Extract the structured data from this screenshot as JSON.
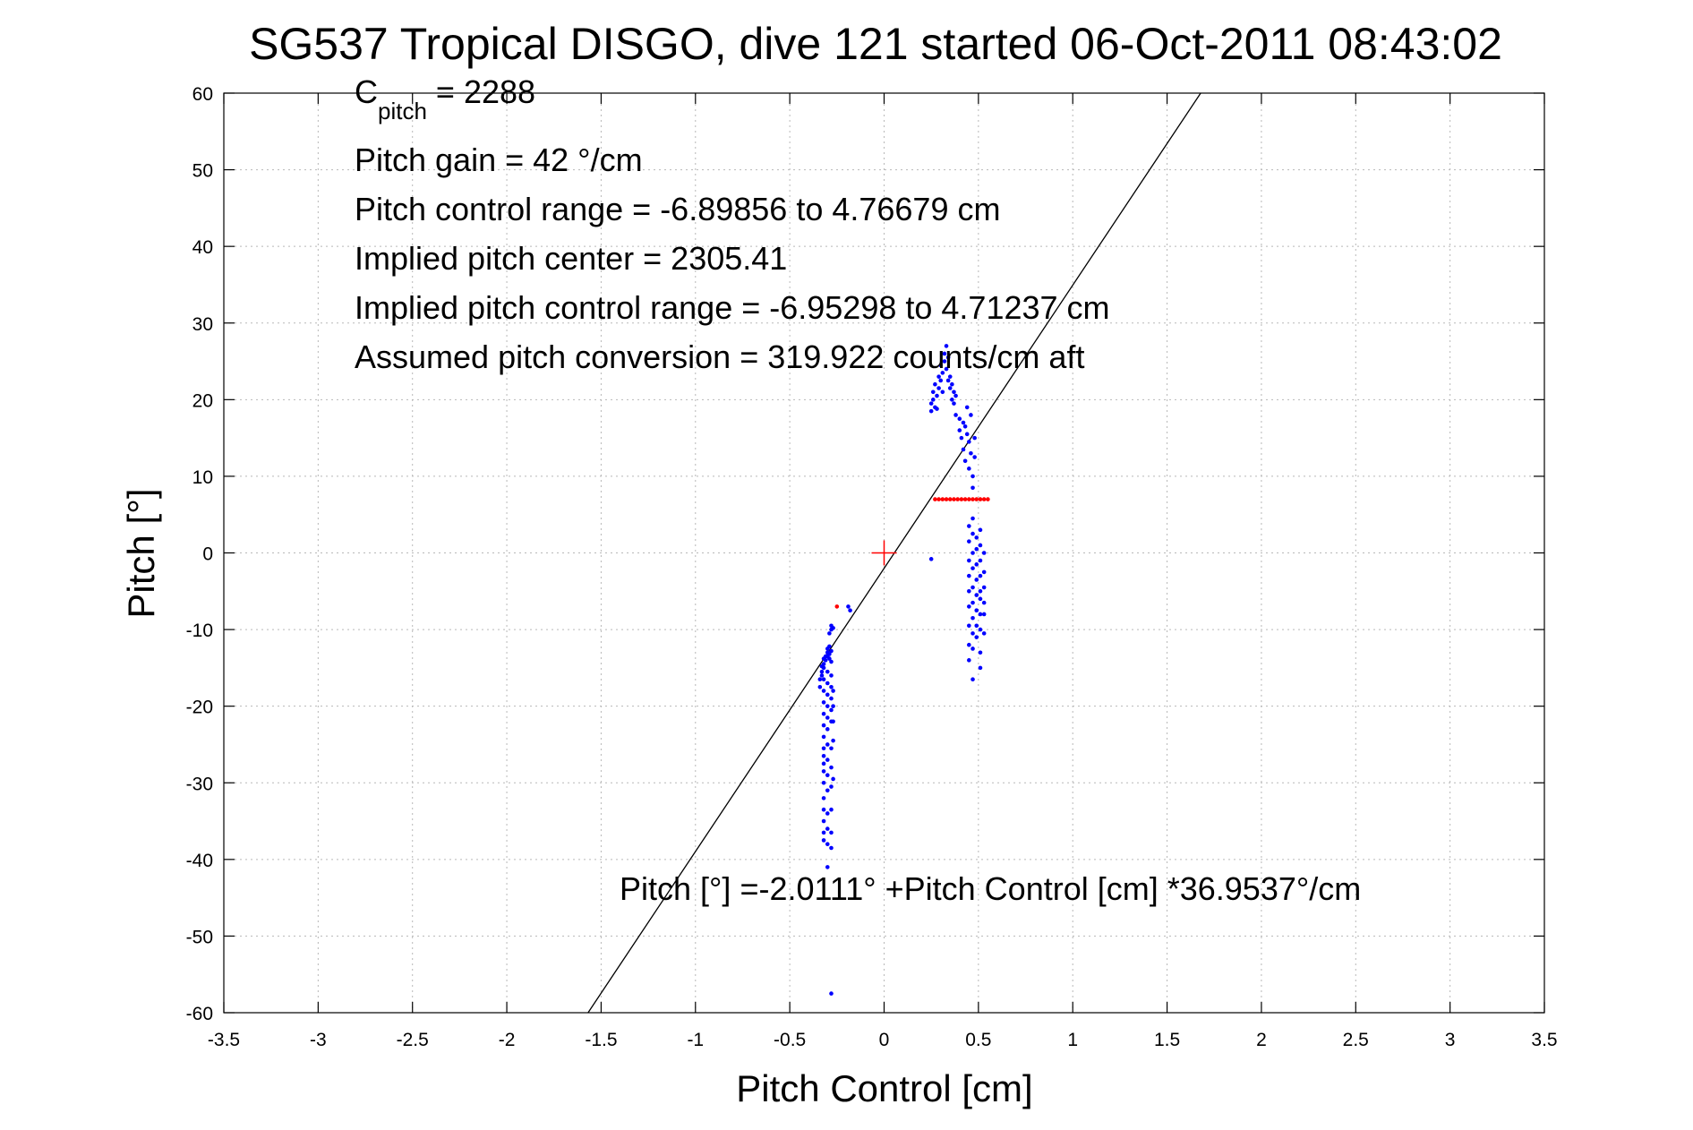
{
  "colors": {
    "pitch_points": "#0000ff",
    "flagged_points": "#ff0000",
    "center_marker": "#ff0000",
    "fit_line": "#000000",
    "grid": "#b8b8b8"
  },
  "annotations": {
    "c_pitch_letter": "C",
    "c_pitch_subscript": "pitch",
    "c_pitch_value": " = 2288",
    "pitch_gain": "Pitch gain = 42 °/cm",
    "pitch_control_range": "Pitch control range = -6.89856 to 4.76679 cm",
    "implied_pitch_center": "Implied pitch center = 2305.41",
    "implied_pitch_control_range": "Implied pitch control range = -6.95298 to 4.71237 cm",
    "assumed_pitch_conversion": "Assumed pitch conversion = 319.922 counts/cm aft",
    "fit_equation": "Pitch [°] =-2.0111° +Pitch Control [cm] *36.9537°/cm"
  },
  "chart_data": {
    "type": "scatter",
    "title": "SG537 Tropical DISGO, dive 121 started 06-Oct-2011 08:43:02",
    "xlabel": "Pitch Control [cm]",
    "ylabel": "Pitch [°]",
    "xlim": [
      -3.5,
      3.5
    ],
    "ylim": [
      -60,
      60
    ],
    "x_ticks": [
      -3.5,
      -3,
      -2.5,
      -2,
      -1.5,
      -1,
      -0.5,
      0,
      0.5,
      1,
      1.5,
      2,
      2.5,
      3,
      3.5
    ],
    "y_ticks": [
      -60,
      -50,
      -40,
      -30,
      -20,
      -10,
      0,
      10,
      20,
      30,
      40,
      50,
      60
    ],
    "grid": true,
    "fit": {
      "intercept": -2.0111,
      "slope": 36.9537
    },
    "center_marker": {
      "x": 0,
      "y": 0
    },
    "series": [
      {
        "color": "#0000ff",
        "points": [
          [
            -0.34,
            -16.5
          ],
          [
            -0.34,
            -17.5
          ],
          [
            -0.33,
            -16.0
          ],
          [
            -0.33,
            -15.5
          ],
          [
            -0.32,
            -15.0
          ],
          [
            -0.32,
            -14.5
          ],
          [
            -0.31,
            -14.0
          ],
          [
            -0.31,
            -13.5
          ],
          [
            -0.3,
            -13.5
          ],
          [
            -0.3,
            -13.0
          ],
          [
            -0.29,
            -13.2
          ],
          [
            -0.29,
            -13.8
          ],
          [
            -0.28,
            -12.8
          ],
          [
            -0.28,
            -14.2
          ],
          [
            -0.3,
            -12.5
          ],
          [
            -0.32,
            -13.8
          ],
          [
            -0.33,
            -14.8
          ],
          [
            -0.29,
            -12.2
          ],
          [
            -0.28,
            -10.0
          ],
          [
            -0.28,
            -9.5
          ],
          [
            -0.29,
            -10.5
          ],
          [
            -0.27,
            -9.8
          ],
          [
            -0.32,
            -16.5
          ],
          [
            -0.32,
            -18.0
          ],
          [
            -0.32,
            -19.5
          ],
          [
            -0.32,
            -21.0
          ],
          [
            -0.32,
            -22.5
          ],
          [
            -0.32,
            -24.0
          ],
          [
            -0.32,
            -25.5
          ],
          [
            -0.32,
            -26.5
          ],
          [
            -0.32,
            -27.5
          ],
          [
            -0.32,
            -28.5
          ],
          [
            -0.32,
            -30.0
          ],
          [
            -0.32,
            -32.0
          ],
          [
            -0.32,
            -33.5
          ],
          [
            -0.32,
            -35.0
          ],
          [
            -0.32,
            -36.5
          ],
          [
            -0.32,
            -37.5
          ],
          [
            -0.3,
            -15.5
          ],
          [
            -0.3,
            -17.0
          ],
          [
            -0.3,
            -18.5
          ],
          [
            -0.3,
            -20.0
          ],
          [
            -0.3,
            -21.5
          ],
          [
            -0.3,
            -23.0
          ],
          [
            -0.3,
            -25.0
          ],
          [
            -0.3,
            -27.0
          ],
          [
            -0.3,
            -29.0
          ],
          [
            -0.3,
            -31.0
          ],
          [
            -0.3,
            -34.0
          ],
          [
            -0.3,
            -36.0
          ],
          [
            -0.3,
            -38.0
          ],
          [
            -0.3,
            -41.0
          ],
          [
            -0.28,
            -16.0
          ],
          [
            -0.28,
            -17.5
          ],
          [
            -0.28,
            -19.0
          ],
          [
            -0.28,
            -20.5
          ],
          [
            -0.28,
            -22.0
          ],
          [
            -0.28,
            -25.5
          ],
          [
            -0.28,
            -28.0
          ],
          [
            -0.28,
            -30.5
          ],
          [
            -0.28,
            -33.5
          ],
          [
            -0.28,
            -36.5
          ],
          [
            -0.28,
            -38.5
          ],
          [
            -0.27,
            -18.0
          ],
          [
            -0.27,
            -20.0
          ],
          [
            -0.27,
            -22.0
          ],
          [
            -0.27,
            -24.5
          ],
          [
            -0.27,
            -29.5
          ],
          [
            -0.19,
            -7.0
          ],
          [
            -0.18,
            -7.5
          ],
          [
            -0.28,
            -57.5
          ],
          [
            0.25,
            -0.8
          ],
          [
            0.25,
            18.5
          ],
          [
            0.25,
            19.5
          ],
          [
            0.26,
            21.0
          ],
          [
            0.26,
            20.0
          ],
          [
            0.27,
            19.0
          ],
          [
            0.27,
            22.0
          ],
          [
            0.28,
            20.5
          ],
          [
            0.28,
            18.8
          ],
          [
            0.29,
            23.0
          ],
          [
            0.29,
            21.5
          ],
          [
            0.3,
            24.5
          ],
          [
            0.3,
            22.5
          ],
          [
            0.31,
            23.5
          ],
          [
            0.31,
            21.0
          ],
          [
            0.32,
            26.0
          ],
          [
            0.32,
            25.0
          ],
          [
            0.33,
            27.0
          ],
          [
            0.33,
            24.0
          ],
          [
            0.34,
            22.5
          ],
          [
            0.34,
            25.5
          ],
          [
            0.35,
            23.0
          ],
          [
            0.35,
            21.5
          ],
          [
            0.36,
            22.0
          ],
          [
            0.36,
            20.0
          ],
          [
            0.37,
            21.0
          ],
          [
            0.37,
            19.5
          ],
          [
            0.38,
            20.5
          ],
          [
            0.38,
            18.0
          ],
          [
            0.4,
            17.5
          ],
          [
            0.4,
            16.0
          ],
          [
            0.41,
            15.0
          ],
          [
            0.42,
            17.0
          ],
          [
            0.42,
            13.5
          ],
          [
            0.43,
            16.5
          ],
          [
            0.43,
            12.0
          ],
          [
            0.44,
            15.5
          ],
          [
            0.44,
            19.0
          ],
          [
            0.45,
            14.5
          ],
          [
            0.45,
            11.0
          ],
          [
            0.46,
            18.0
          ],
          [
            0.46,
            13.0
          ],
          [
            0.47,
            10.0
          ],
          [
            0.47,
            8.5
          ],
          [
            0.48,
            15.0
          ],
          [
            0.48,
            12.5
          ],
          [
            0.45,
            3.5
          ],
          [
            0.45,
            1.5
          ],
          [
            0.45,
            -1.0
          ],
          [
            0.45,
            -3.0
          ],
          [
            0.45,
            -5.0
          ],
          [
            0.45,
            -7.0
          ],
          [
            0.45,
            -9.5
          ],
          [
            0.45,
            -12.0
          ],
          [
            0.45,
            -14.0
          ],
          [
            0.47,
            4.5
          ],
          [
            0.47,
            2.5
          ],
          [
            0.47,
            0.0
          ],
          [
            0.47,
            -2.0
          ],
          [
            0.47,
            -4.5
          ],
          [
            0.47,
            -6.5
          ],
          [
            0.47,
            -8.5
          ],
          [
            0.47,
            -10.5
          ],
          [
            0.47,
            -12.5
          ],
          [
            0.47,
            -16.5
          ],
          [
            0.49,
            2.0
          ],
          [
            0.49,
            0.5
          ],
          [
            0.49,
            -1.5
          ],
          [
            0.49,
            -3.5
          ],
          [
            0.49,
            -5.5
          ],
          [
            0.49,
            -7.5
          ],
          [
            0.49,
            -9.5
          ],
          [
            0.49,
            -11.0
          ],
          [
            0.51,
            3.0
          ],
          [
            0.51,
            1.0
          ],
          [
            0.51,
            -1.0
          ],
          [
            0.51,
            -3.0
          ],
          [
            0.51,
            -5.0
          ],
          [
            0.51,
            -6.0
          ],
          [
            0.51,
            -8.0
          ],
          [
            0.51,
            -10.0
          ],
          [
            0.51,
            -13.0
          ],
          [
            0.51,
            -15.0
          ],
          [
            0.53,
            0.0
          ],
          [
            0.53,
            -2.5
          ],
          [
            0.53,
            -4.5
          ],
          [
            0.53,
            -6.5
          ],
          [
            0.53,
            -8.0
          ],
          [
            0.53,
            -10.5
          ]
        ]
      },
      {
        "color": "#ff0000",
        "points": [
          [
            0.27,
            7.0
          ],
          [
            0.29,
            7.0
          ],
          [
            0.31,
            7.0
          ],
          [
            0.33,
            7.0
          ],
          [
            0.35,
            7.0
          ],
          [
            0.37,
            7.0
          ],
          [
            0.39,
            7.0
          ],
          [
            0.41,
            7.0
          ],
          [
            0.43,
            7.0
          ],
          [
            0.45,
            7.0
          ],
          [
            0.47,
            7.0
          ],
          [
            0.49,
            7.0
          ],
          [
            0.51,
            7.0
          ],
          [
            0.53,
            7.0
          ],
          [
            0.55,
            7.0
          ],
          [
            -0.25,
            -7.0
          ]
        ]
      }
    ]
  }
}
